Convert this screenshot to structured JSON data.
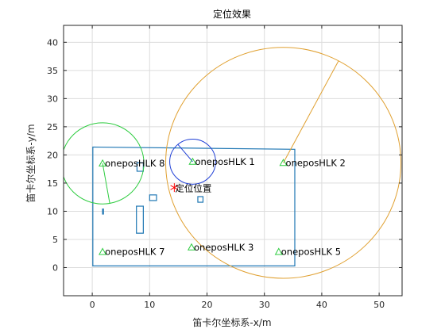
{
  "chart_data": {
    "type": "scatter",
    "title": "定位效果",
    "xlabel": "笛卡尔坐标系-x/m",
    "ylabel": "笛卡尔坐标系-y/m",
    "xlim": [
      -5,
      54
    ],
    "ylim": [
      -5,
      43
    ],
    "xticks": [
      0,
      10,
      20,
      30,
      40,
      50
    ],
    "yticks": [
      0,
      5,
      10,
      15,
      20,
      25,
      30,
      35,
      40
    ],
    "grid": true,
    "anchors": [
      {
        "label": "oneposHLK 8",
        "x": 1.8,
        "y": 18.5,
        "range": 7.2,
        "color": "#2ecc40",
        "range_angle_deg": -80
      },
      {
        "label": "oneposHLK 1",
        "x": 17.5,
        "y": 18.8,
        "range": 4.0,
        "color": "#1f3fd6",
        "range_angle_deg": 130
      },
      {
        "label": "oneposHLK 2",
        "x": 33.3,
        "y": 18.6,
        "range": 20.5,
        "color": "#e0a030",
        "range_angle_deg": 62
      },
      {
        "label": "oneposHLK 7",
        "x": 1.8,
        "y": 2.8,
        "color": "#2ecc40"
      },
      {
        "label": "oneposHLK 3",
        "x": 17.3,
        "y": 3.6,
        "color": "#2ecc40"
      },
      {
        "label": "oneposHLK 5",
        "x": 32.5,
        "y": 2.8,
        "color": "#2ecc40"
      }
    ],
    "estimate": {
      "label": "定位位置",
      "x": 14.3,
      "y": 14.2,
      "color": "#ff0000"
    },
    "floor_plan": {
      "color": "#1f77b4",
      "outline": [
        [
          0.1,
          0.3
        ],
        [
          35.3,
          0.3
        ],
        [
          35.3,
          21.0
        ],
        [
          0.1,
          21.4
        ]
      ],
      "obstacles": [
        {
          "x0": 7.8,
          "y0": 17.1,
          "x1": 8.9,
          "y1": 18.6
        },
        {
          "x0": 10.0,
          "y0": 11.9,
          "x1": 11.2,
          "y1": 12.9
        },
        {
          "x0": 18.4,
          "y0": 11.6,
          "x1": 19.3,
          "y1": 12.6
        },
        {
          "x0": 7.7,
          "y0": 6.1,
          "x1": 8.9,
          "y1": 10.9
        },
        {
          "x0": 1.8,
          "y0": 9.5,
          "x1": 1.95,
          "y1": 10.4
        }
      ]
    }
  }
}
